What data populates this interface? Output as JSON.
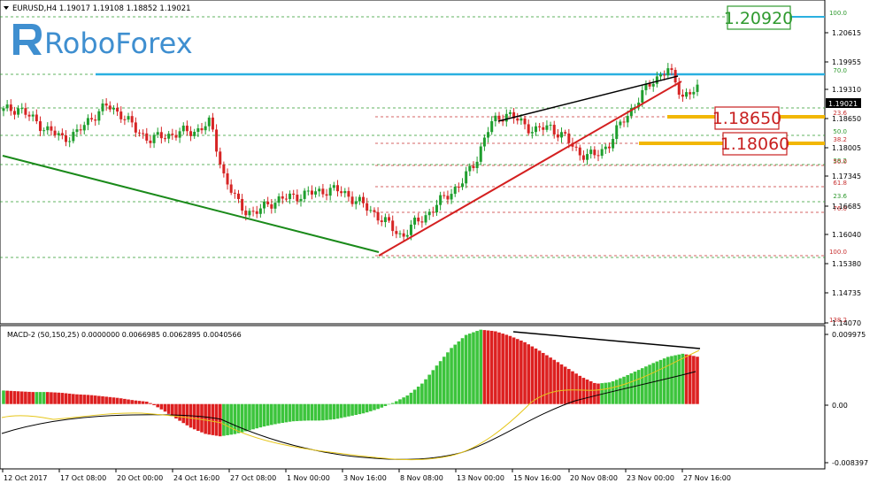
{
  "window": {
    "symbol_header": "EURUSD,H4  1.19017 1.19108 1.18852 1.19021"
  },
  "logo": {
    "text": "RoboForex"
  },
  "colors": {
    "bull": "#1f9e2e",
    "bear": "#d62424",
    "fib_green": "#2f9a2f",
    "fib_red": "#c83232",
    "resistance": "#2ab0e0",
    "macd_up": "#3cc43c",
    "macd_down": "#dd2020",
    "signal_yellow": "#e6c619"
  },
  "price_axis": {
    "labels": [
      "1.20615",
      "1.19955",
      "1.19310",
      "1.18650",
      "1.18005",
      "1.17345",
      "1.16685",
      "1.16040",
      "1.15380",
      "1.14735",
      "1.14070"
    ],
    "current_price": "1.19021"
  },
  "time_axis": {
    "labels": [
      "12 Oct 2017",
      "17 Oct 08:00",
      "20 Oct 00:00",
      "24 Oct 16:00",
      "27 Oct 08:00",
      "1 Nov 00:00",
      "3 Nov 16:00",
      "8 Nov 08:00",
      "13 Nov 00:00",
      "15 Nov 16:00",
      "20 Nov 08:00",
      "23 Nov 00:00",
      "27 Nov 16:00"
    ]
  },
  "fib_upper": {
    "labels": [
      "100.0",
      "70.0",
      "61.8",
      "50.0",
      "38.2"
    ]
  },
  "fib_lower": {
    "labels": [
      "23.6",
      "38.2",
      "50.0",
      "61.8",
      "23.6",
      "76.0",
      "100.0",
      "138.2"
    ]
  },
  "annotations": {
    "target": "1.20920",
    "support_1": "1.18650",
    "support_2": "1.18060"
  },
  "macd": {
    "header": "MACD-2 (50,150,25) 0.0000000 0.0066985 0.0062895 0.0040566",
    "axis_labels": [
      "0.009975",
      "0.00",
      "-0.008397"
    ]
  },
  "chart_data": [
    {
      "type": "candlestick",
      "title": "EURUSD,H4",
      "ylim": [
        1.1375,
        1.2105
      ],
      "key_levels": {
        "target": 1.2092,
        "support_1": 1.1865,
        "support_2": 1.1806,
        "resistance": 1.1962
      },
      "approx_path": [
        1.1855,
        1.1862,
        1.1835,
        1.1812,
        1.1793,
        1.1805,
        1.1842,
        1.1866,
        1.1848,
        1.181,
        1.179,
        1.18,
        1.1806,
        1.181,
        1.1828,
        1.17,
        1.164,
        1.1622,
        1.1648,
        1.1657,
        1.1665,
        1.167,
        1.1678,
        1.1672,
        1.165,
        1.1628,
        1.16,
        1.1572,
        1.1605,
        1.163,
        1.1665,
        1.169,
        1.1745,
        1.1825,
        1.185,
        1.183,
        1.181,
        1.182,
        1.1795,
        1.176,
        1.1752,
        1.178,
        1.1835,
        1.188,
        1.1925,
        1.1948,
        1.189,
        1.1902
      ],
      "lines": [
        {
          "name": "green trendline",
          "from": 1.179,
          "to": 1.1565
        },
        {
          "name": "red trendline",
          "from": 1.1568,
          "to": 1.195
        },
        {
          "name": "black trendline",
          "from": 1.1873,
          "to": 1.196
        }
      ]
    },
    {
      "type": "bar",
      "title": "MACD-2 (50,150,25)",
      "ylim": [
        -0.008397,
        0.009975
      ],
      "values": [
        0.0018,
        0.0017,
        0.0016,
        0.0016,
        0.0015,
        0.0013,
        0.0012,
        0.001,
        0.0008,
        0.0005,
        0.0003,
        -0.0008,
        -0.002,
        -0.0032,
        -0.004,
        -0.0043,
        -0.004,
        -0.0035,
        -0.003,
        -0.0026,
        -0.0023,
        -0.0022,
        -0.0022,
        -0.002,
        -0.0016,
        -0.0012,
        -0.0006,
        0.0002,
        0.0012,
        0.0028,
        0.0052,
        0.0075,
        0.0092,
        0.0099,
        0.0097,
        0.0091,
        0.0083,
        0.0072,
        0.006,
        0.0048,
        0.0036,
        0.0027,
        0.0029,
        0.0037,
        0.0046,
        0.0055,
        0.0063,
        0.0067,
        0.0063
      ]
    }
  ]
}
